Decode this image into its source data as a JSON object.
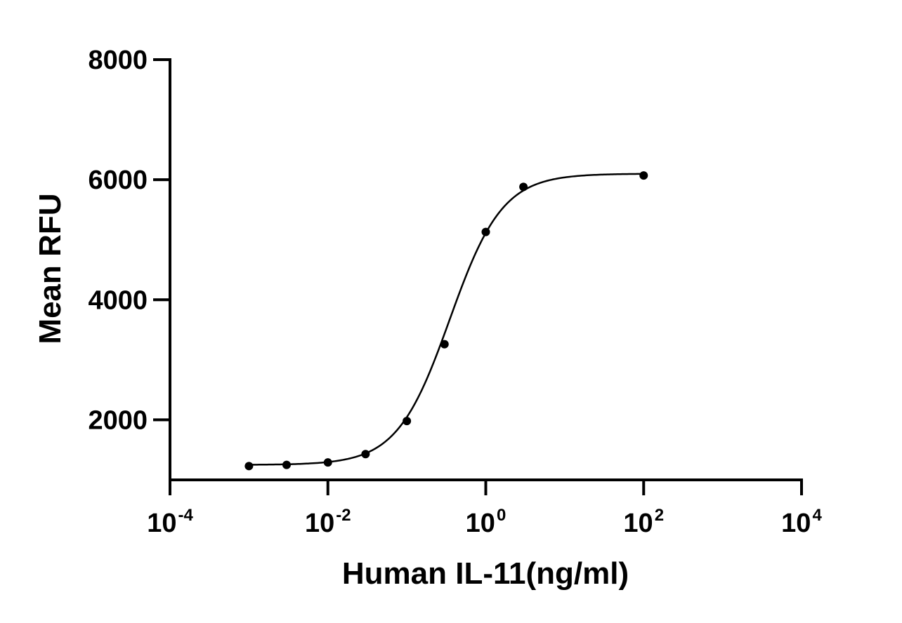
{
  "chart_data": {
    "type": "scatter",
    "xlabel": "Human IL-11(ng/ml)",
    "ylabel": "Mean RFU",
    "x_scale": "log",
    "xlim": [
      0.0001,
      10000
    ],
    "ylim": [
      1000,
      8000
    ],
    "x_ticks": [
      {
        "base": "10",
        "exp": "-4",
        "value": 0.0001
      },
      {
        "base": "10",
        "exp": "-2",
        "value": 0.01
      },
      {
        "base": "10",
        "exp": "0",
        "value": 1
      },
      {
        "base": "10",
        "exp": "2",
        "value": 100
      },
      {
        "base": "10",
        "exp": "4",
        "value": 10000
      }
    ],
    "y_ticks": [
      "2000",
      "4000",
      "6000",
      "8000"
    ],
    "grid": false,
    "series": [
      {
        "points": [
          {
            "x": 0.001,
            "y": 1230
          },
          {
            "x": 0.003,
            "y": 1250
          },
          {
            "x": 0.01,
            "y": 1290
          },
          {
            "x": 0.03,
            "y": 1430
          },
          {
            "x": 0.1,
            "y": 1980
          },
          {
            "x": 0.3,
            "y": 3260
          },
          {
            "x": 1,
            "y": 5130
          },
          {
            "x": 3,
            "y": 5880
          },
          {
            "x": 100,
            "y": 6070
          }
        ],
        "fit": {
          "model": "4PL",
          "bottom": 1250,
          "top": 6100,
          "ec50": 0.35,
          "hill": 1.3,
          "x_range": [
            0.001,
            100
          ]
        }
      }
    ]
  }
}
